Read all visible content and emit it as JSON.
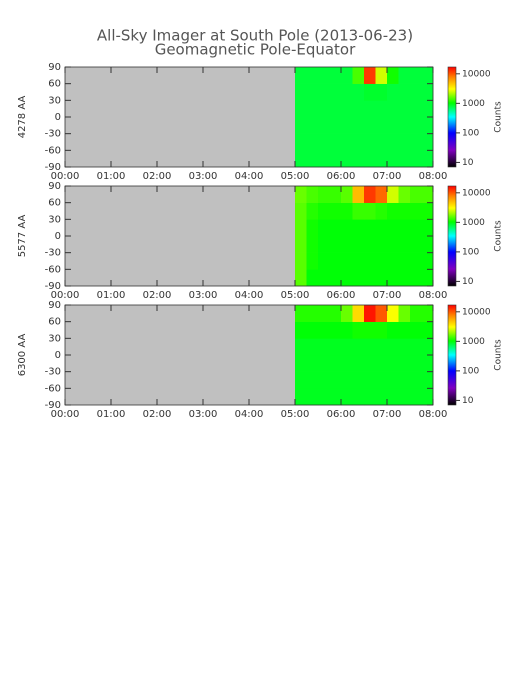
{
  "chart_data": {
    "type": "heatmap",
    "title": "All-Sky Imager at South Pole (2013-06-23)",
    "subtitle": "Geomagnetic Pole-Equator",
    "xlim": [
      0,
      8
    ],
    "xticks": [
      {
        "value": 0,
        "label": "00:00"
      },
      {
        "value": 1,
        "label": "01:00"
      },
      {
        "value": 2,
        "label": "02:00"
      },
      {
        "value": 3,
        "label": "03:00"
      },
      {
        "value": 4,
        "label": "04:00"
      },
      {
        "value": 5,
        "label": "05:00"
      },
      {
        "value": 6,
        "label": "06:00"
      },
      {
        "value": 7,
        "label": "07:00"
      },
      {
        "value": 8,
        "label": "08:00"
      }
    ],
    "ylim": [
      -90,
      90
    ],
    "yticks": [
      -90,
      -60,
      -30,
      0,
      30,
      60,
      90
    ],
    "x_bins": [
      5,
      5.25,
      5.5,
      5.75,
      6,
      6.25,
      6.5,
      6.75,
      7,
      7.25,
      7.5,
      7.75,
      8
    ],
    "y_bins": [
      -90,
      -60,
      -30,
      0,
      30,
      60,
      90
    ],
    "nodata_color": "#c0c0c0",
    "colorbar": {
      "label": "Counts",
      "log": true,
      "zlim": [
        7,
        17000
      ],
      "ticks": [
        10,
        100,
        1000,
        10000
      ],
      "colormap": [
        {
          "stop": 0,
          "color": "#000000"
        },
        {
          "stop": 0.17,
          "color": "#8000c0"
        },
        {
          "stop": 0.34,
          "color": "#0000ff"
        },
        {
          "stop": 0.5,
          "color": "#00ffff"
        },
        {
          "stop": 0.64,
          "color": "#00ff00"
        },
        {
          "stop": 0.78,
          "color": "#ffff00"
        },
        {
          "stop": 0.9,
          "color": "#ff8000"
        },
        {
          "stop": 1,
          "color": "#ff0000"
        }
      ]
    },
    "panels": [
      {
        "ylabel": "4278 AA",
        "values": [
          [
            800,
            800,
            800,
            800,
            800,
            800,
            800,
            800,
            800,
            800,
            800,
            800
          ],
          [
            800,
            800,
            800,
            800,
            800,
            800,
            800,
            800,
            800,
            800,
            800,
            800
          ],
          [
            800,
            800,
            800,
            800,
            800,
            800,
            800,
            800,
            800,
            800,
            800,
            800
          ],
          [
            800,
            800,
            800,
            800,
            800,
            800,
            800,
            800,
            800,
            800,
            800,
            800
          ],
          [
            800,
            800,
            800,
            800,
            800,
            800,
            850,
            850,
            800,
            800,
            800,
            800
          ],
          [
            800,
            800,
            800,
            800,
            800,
            1400,
            12000,
            2500,
            1100,
            800,
            800,
            800
          ]
        ]
      },
      {
        "ylabel": "5577 AA",
        "values": [
          [
            1500,
            1000,
            1000,
            1000,
            1000,
            1000,
            1000,
            1000,
            1000,
            1000,
            1000,
            1000
          ],
          [
            1500,
            1100,
            1000,
            1000,
            1000,
            1000,
            1000,
            1000,
            1000,
            1000,
            1000,
            1000
          ],
          [
            1500,
            1100,
            1000,
            1000,
            1000,
            1000,
            1000,
            1000,
            1000,
            1000,
            1000,
            1000
          ],
          [
            1500,
            1100,
            1000,
            1000,
            1000,
            1000,
            1000,
            1000,
            1000,
            1000,
            1000,
            1000
          ],
          [
            1500,
            1200,
            1100,
            1100,
            1100,
            1300,
            1300,
            1200,
            1100,
            1100,
            1100,
            1100
          ],
          [
            1600,
            1400,
            1300,
            1300,
            1500,
            5000,
            12000,
            9000,
            2500,
            1600,
            1400,
            1400
          ]
        ]
      },
      {
        "ylabel": "6300 AA",
        "values": [
          [
            900,
            900,
            900,
            900,
            900,
            900,
            900,
            900,
            900,
            900,
            900,
            900
          ],
          [
            900,
            900,
            900,
            900,
            900,
            900,
            900,
            900,
            900,
            900,
            900,
            900
          ],
          [
            900,
            900,
            900,
            900,
            900,
            900,
            900,
            900,
            900,
            900,
            900,
            900
          ],
          [
            900,
            900,
            900,
            900,
            900,
            900,
            900,
            900,
            900,
            900,
            900,
            900
          ],
          [
            1000,
            1000,
            1000,
            1000,
            1000,
            1100,
            1100,
            1100,
            1000,
            1000,
            1000,
            1000
          ],
          [
            1200,
            1200,
            1200,
            1200,
            1600,
            4000,
            15000,
            10000,
            3000,
            1600,
            1200,
            1200
          ]
        ]
      }
    ]
  }
}
